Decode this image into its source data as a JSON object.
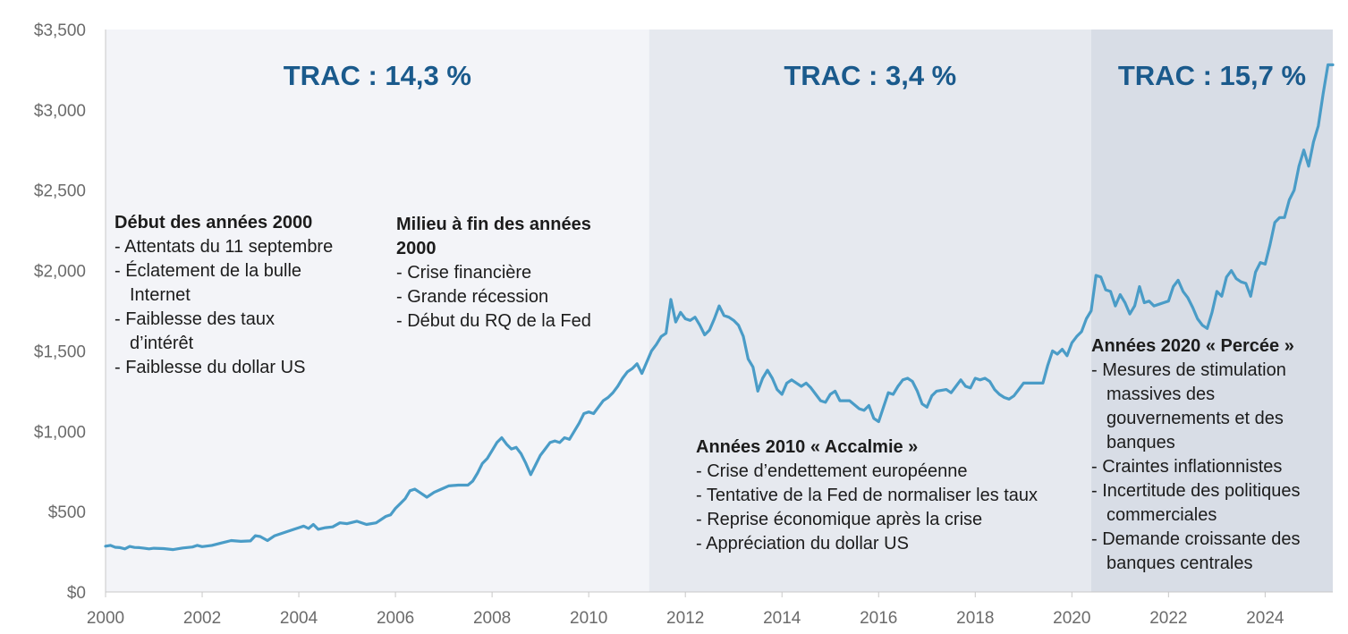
{
  "chart_data": {
    "type": "line",
    "title": "",
    "xlabel": "",
    "ylabel": "",
    "xlim": [
      2000,
      2025.4
    ],
    "ylim": [
      0,
      3500
    ],
    "grid": false,
    "y_ticks": [
      "$0",
      "$500",
      "$1,000",
      "$1,500",
      "$2,000",
      "$2,500",
      "$3,000",
      "$3,500"
    ],
    "x_ticks": [
      "2000",
      "2002",
      "2004",
      "2006",
      "2008",
      "2010",
      "2012",
      "2014",
      "2016",
      "2018",
      "2020",
      "2022",
      "2024"
    ],
    "series_color": "#4a9cc7",
    "series": [
      {
        "points": [
          [
            2000.0,
            285
          ],
          [
            2000.1,
            290
          ],
          [
            2000.2,
            278
          ],
          [
            2000.3,
            276
          ],
          [
            2000.4,
            268
          ],
          [
            2000.5,
            283
          ],
          [
            2000.6,
            277
          ],
          [
            2000.7,
            276
          ],
          [
            2000.8,
            272
          ],
          [
            2000.9,
            268
          ],
          [
            2001.0,
            272
          ],
          [
            2001.2,
            270
          ],
          [
            2001.4,
            264
          ],
          [
            2001.6,
            274
          ],
          [
            2001.8,
            280
          ],
          [
            2001.9,
            290
          ],
          [
            2002.0,
            282
          ],
          [
            2002.2,
            290
          ],
          [
            2002.4,
            305
          ],
          [
            2002.6,
            320
          ],
          [
            2002.8,
            315
          ],
          [
            2003.0,
            318
          ],
          [
            2003.1,
            350
          ],
          [
            2003.2,
            345
          ],
          [
            2003.35,
            320
          ],
          [
            2003.5,
            350
          ],
          [
            2003.7,
            370
          ],
          [
            2003.9,
            390
          ],
          [
            2004.0,
            400
          ],
          [
            2004.1,
            410
          ],
          [
            2004.2,
            395
          ],
          [
            2004.3,
            420
          ],
          [
            2004.4,
            390
          ],
          [
            2004.55,
            400
          ],
          [
            2004.7,
            405
          ],
          [
            2004.85,
            430
          ],
          [
            2005.0,
            425
          ],
          [
            2005.2,
            440
          ],
          [
            2005.4,
            420
          ],
          [
            2005.6,
            430
          ],
          [
            2005.8,
            470
          ],
          [
            2005.9,
            480
          ],
          [
            2006.0,
            520
          ],
          [
            2006.1,
            550
          ],
          [
            2006.2,
            580
          ],
          [
            2006.3,
            630
          ],
          [
            2006.4,
            640
          ],
          [
            2006.5,
            620
          ],
          [
            2006.65,
            590
          ],
          [
            2006.8,
            620
          ],
          [
            2006.95,
            640
          ],
          [
            2007.1,
            660
          ],
          [
            2007.3,
            665
          ],
          [
            2007.5,
            665
          ],
          [
            2007.6,
            690
          ],
          [
            2007.7,
            740
          ],
          [
            2007.8,
            800
          ],
          [
            2007.9,
            830
          ],
          [
            2008.0,
            880
          ],
          [
            2008.1,
            930
          ],
          [
            2008.2,
            960
          ],
          [
            2008.3,
            920
          ],
          [
            2008.4,
            890
          ],
          [
            2008.5,
            900
          ],
          [
            2008.6,
            860
          ],
          [
            2008.7,
            800
          ],
          [
            2008.8,
            730
          ],
          [
            2008.9,
            790
          ],
          [
            2009.0,
            850
          ],
          [
            2009.1,
            890
          ],
          [
            2009.2,
            930
          ],
          [
            2009.3,
            940
          ],
          [
            2009.4,
            930
          ],
          [
            2009.5,
            960
          ],
          [
            2009.6,
            950
          ],
          [
            2009.7,
            1000
          ],
          [
            2009.8,
            1050
          ],
          [
            2009.9,
            1110
          ],
          [
            2010.0,
            1120
          ],
          [
            2010.1,
            1110
          ],
          [
            2010.2,
            1150
          ],
          [
            2010.3,
            1190
          ],
          [
            2010.4,
            1210
          ],
          [
            2010.5,
            1240
          ],
          [
            2010.6,
            1280
          ],
          [
            2010.7,
            1330
          ],
          [
            2010.8,
            1370
          ],
          [
            2010.9,
            1390
          ],
          [
            2011.0,
            1420
          ],
          [
            2011.1,
            1360
          ],
          [
            2011.2,
            1430
          ],
          [
            2011.3,
            1500
          ],
          [
            2011.4,
            1540
          ],
          [
            2011.5,
            1590
          ],
          [
            2011.6,
            1610
          ],
          [
            2011.7,
            1820
          ],
          [
            2011.8,
            1680
          ],
          [
            2011.9,
            1740
          ],
          [
            2012.0,
            1700
          ],
          [
            2012.1,
            1690
          ],
          [
            2012.2,
            1710
          ],
          [
            2012.3,
            1660
          ],
          [
            2012.4,
            1600
          ],
          [
            2012.5,
            1630
          ],
          [
            2012.6,
            1700
          ],
          [
            2012.7,
            1780
          ],
          [
            2012.8,
            1720
          ],
          [
            2012.9,
            1710
          ],
          [
            2013.0,
            1690
          ],
          [
            2013.1,
            1660
          ],
          [
            2013.2,
            1590
          ],
          [
            2013.3,
            1450
          ],
          [
            2013.4,
            1400
          ],
          [
            2013.5,
            1250
          ],
          [
            2013.6,
            1330
          ],
          [
            2013.7,
            1380
          ],
          [
            2013.8,
            1330
          ],
          [
            2013.9,
            1260
          ],
          [
            2014.0,
            1230
          ],
          [
            2014.1,
            1300
          ],
          [
            2014.2,
            1320
          ],
          [
            2014.3,
            1300
          ],
          [
            2014.4,
            1280
          ],
          [
            2014.5,
            1300
          ],
          [
            2014.6,
            1270
          ],
          [
            2014.7,
            1230
          ],
          [
            2014.8,
            1190
          ],
          [
            2014.9,
            1180
          ],
          [
            2015.0,
            1230
          ],
          [
            2015.1,
            1250
          ],
          [
            2015.2,
            1190
          ],
          [
            2015.4,
            1190
          ],
          [
            2015.6,
            1140
          ],
          [
            2015.7,
            1130
          ],
          [
            2015.8,
            1160
          ],
          [
            2015.9,
            1080
          ],
          [
            2016.0,
            1060
          ],
          [
            2016.1,
            1150
          ],
          [
            2016.2,
            1240
          ],
          [
            2016.3,
            1230
          ],
          [
            2016.4,
            1280
          ],
          [
            2016.5,
            1320
          ],
          [
            2016.6,
            1330
          ],
          [
            2016.7,
            1310
          ],
          [
            2016.8,
            1250
          ],
          [
            2016.9,
            1170
          ],
          [
            2017.0,
            1150
          ],
          [
            2017.1,
            1220
          ],
          [
            2017.2,
            1250
          ],
          [
            2017.4,
            1260
          ],
          [
            2017.5,
            1240
          ],
          [
            2017.6,
            1280
          ],
          [
            2017.7,
            1320
          ],
          [
            2017.8,
            1280
          ],
          [
            2017.9,
            1270
          ],
          [
            2018.0,
            1330
          ],
          [
            2018.1,
            1320
          ],
          [
            2018.2,
            1330
          ],
          [
            2018.3,
            1310
          ],
          [
            2018.4,
            1260
          ],
          [
            2018.5,
            1230
          ],
          [
            2018.6,
            1210
          ],
          [
            2018.7,
            1200
          ],
          [
            2018.8,
            1220
          ],
          [
            2018.9,
            1260
          ],
          [
            2019.0,
            1300
          ],
          [
            2019.2,
            1300
          ],
          [
            2019.4,
            1300
          ],
          [
            2019.5,
            1410
          ],
          [
            2019.6,
            1500
          ],
          [
            2019.7,
            1480
          ],
          [
            2019.8,
            1510
          ],
          [
            2019.9,
            1470
          ],
          [
            2020.0,
            1550
          ],
          [
            2020.1,
            1590
          ],
          [
            2020.2,
            1620
          ],
          [
            2020.3,
            1700
          ],
          [
            2020.4,
            1750
          ],
          [
            2020.5,
            1970
          ],
          [
            2020.6,
            1960
          ],
          [
            2020.7,
            1880
          ],
          [
            2020.8,
            1870
          ],
          [
            2020.9,
            1780
          ],
          [
            2021.0,
            1850
          ],
          [
            2021.1,
            1800
          ],
          [
            2021.2,
            1730
          ],
          [
            2021.3,
            1780
          ],
          [
            2021.4,
            1900
          ],
          [
            2021.5,
            1800
          ],
          [
            2021.6,
            1810
          ],
          [
            2021.7,
            1780
          ],
          [
            2021.8,
            1790
          ],
          [
            2021.9,
            1800
          ],
          [
            2022.0,
            1810
          ],
          [
            2022.1,
            1900
          ],
          [
            2022.2,
            1940
          ],
          [
            2022.3,
            1870
          ],
          [
            2022.4,
            1830
          ],
          [
            2022.5,
            1770
          ],
          [
            2022.6,
            1700
          ],
          [
            2022.7,
            1660
          ],
          [
            2022.8,
            1640
          ],
          [
            2022.9,
            1740
          ],
          [
            2023.0,
            1870
          ],
          [
            2023.1,
            1840
          ],
          [
            2023.2,
            1960
          ],
          [
            2023.3,
            2000
          ],
          [
            2023.4,
            1950
          ],
          [
            2023.5,
            1930
          ],
          [
            2023.6,
            1920
          ],
          [
            2023.7,
            1840
          ],
          [
            2023.8,
            1990
          ],
          [
            2023.9,
            2050
          ],
          [
            2024.0,
            2040
          ],
          [
            2024.1,
            2160
          ],
          [
            2024.2,
            2300
          ],
          [
            2024.3,
            2330
          ],
          [
            2024.4,
            2330
          ],
          [
            2024.5,
            2440
          ],
          [
            2024.6,
            2500
          ],
          [
            2024.7,
            2650
          ],
          [
            2024.8,
            2750
          ],
          [
            2024.9,
            2650
          ],
          [
            2025.0,
            2800
          ],
          [
            2025.1,
            2900
          ],
          [
            2025.2,
            3100
          ],
          [
            2025.3,
            3280
          ],
          [
            2025.4,
            3280
          ]
        ]
      }
    ],
    "regions": [
      {
        "start": 2000,
        "end": 2011.25,
        "color": "#f3f4f8",
        "label": "TRAC : 14,3 %"
      },
      {
        "start": 2011.25,
        "end": 2020.4,
        "color": "#e6e9ef",
        "label": "TRAC : 3,4 %"
      },
      {
        "start": 2020.4,
        "end": 2025.4,
        "color": "#d8dde6",
        "label": "TRAC : 15,7 %"
      }
    ]
  },
  "annotations": {
    "early2000s": {
      "heading": "Début des années 2000",
      "items": [
        "- Attentats du 11 septembre",
        "- Éclatement de la bulle Internet",
        "- Faiblesse des taux d’intérêt",
        "- Faiblesse du dollar US"
      ]
    },
    "mid2000s": {
      "heading": "Milieu à fin des années 2000",
      "items": [
        "- Crise financière",
        "- Grande récession",
        "- Début du RQ de la Fed"
      ]
    },
    "2010s": {
      "heading": "Années 2010 « Accalmie »",
      "items": [
        "- Crise d’endettement européenne",
        "- Tentative de la Fed de normaliser les taux",
        "- Reprise économique après la crise",
        "- Appréciation du dollar US"
      ]
    },
    "2020s": {
      "heading": "Années 2020 « Percée »",
      "items": [
        "- Mesures de stimulation massives des gouvernements et des banques",
        "- Craintes inflationnistes",
        "- Incertitude des politiques commerciales",
        "- Demande croissante des banques centrales"
      ]
    }
  }
}
